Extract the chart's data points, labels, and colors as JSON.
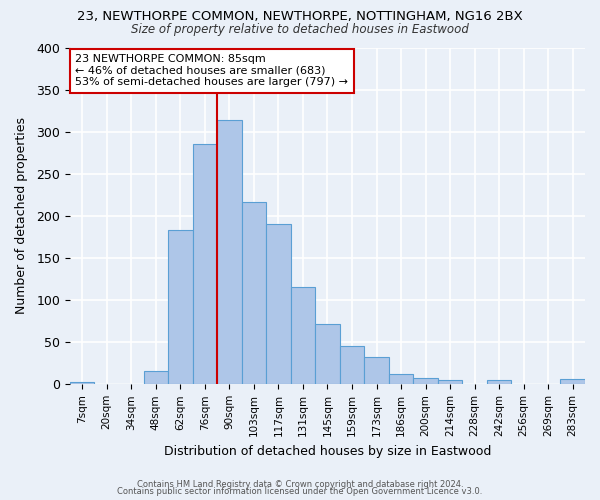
{
  "title": "23, NEWTHORPE COMMON, NEWTHORPE, NOTTINGHAM, NG16 2BX",
  "subtitle": "Size of property relative to detached houses in Eastwood",
  "xlabel": "Distribution of detached houses by size in Eastwood",
  "ylabel": "Number of detached properties",
  "bin_labels": [
    "7sqm",
    "20sqm",
    "34sqm",
    "48sqm",
    "62sqm",
    "76sqm",
    "90sqm",
    "103sqm",
    "117sqm",
    "131sqm",
    "145sqm",
    "159sqm",
    "173sqm",
    "186sqm",
    "200sqm",
    "214sqm",
    "228sqm",
    "242sqm",
    "256sqm",
    "269sqm",
    "283sqm"
  ],
  "bar_heights": [
    3,
    0,
    0,
    16,
    183,
    285,
    314,
    216,
    190,
    116,
    72,
    45,
    33,
    12,
    7,
    5,
    0,
    5,
    0,
    0,
    6
  ],
  "bar_color": "#aec6e8",
  "bar_edgecolor": "#5a9fd4",
  "bg_color": "#eaf0f8",
  "grid_color": "#ffffff",
  "vline_index": 5.5,
  "vline_color": "#cc0000",
  "annotation_text": "23 NEWTHORPE COMMON: 85sqm\n← 46% of detached houses are smaller (683)\n53% of semi-detached houses are larger (797) →",
  "annotation_box_edgecolor": "#cc0000",
  "annotation_box_facecolor": "#ffffff",
  "ylim": [
    0,
    400
  ],
  "yticks": [
    0,
    50,
    100,
    150,
    200,
    250,
    300,
    350,
    400
  ],
  "footnote1": "Contains HM Land Registry data © Crown copyright and database right 2024.",
  "footnote2": "Contains public sector information licensed under the Open Government Licence v3.0."
}
